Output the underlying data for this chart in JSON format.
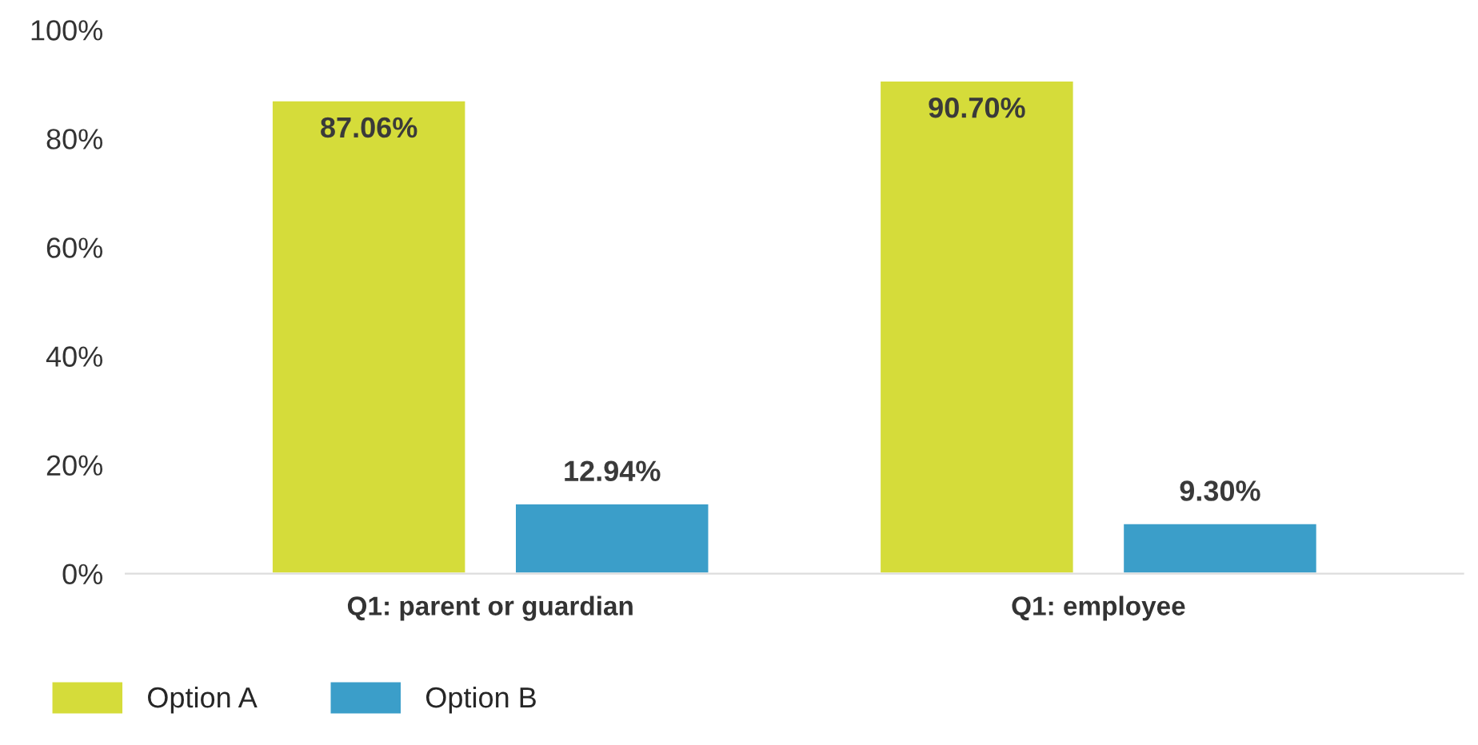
{
  "chart_data": {
    "type": "bar",
    "categories": [
      "Q1: parent or guardian",
      "Q1: employee"
    ],
    "series": [
      {
        "name": "Option A",
        "color": "#d5dc3a",
        "values": [
          87.06,
          90.7
        ],
        "value_labels": [
          "87.06%",
          "90.70%"
        ]
      },
      {
        "name": "Option B",
        "color": "#3b9ec9",
        "values": [
          12.94,
          9.3
        ],
        "value_labels": [
          "12.94%",
          "9.30%"
        ]
      }
    ],
    "ylim": [
      0,
      100
    ],
    "yticks": [
      {
        "value": 0,
        "label": "0%"
      },
      {
        "value": 20,
        "label": "20%"
      },
      {
        "value": 40,
        "label": "40%"
      },
      {
        "value": 60,
        "label": "60%"
      },
      {
        "value": 80,
        "label": "80%"
      },
      {
        "value": 100,
        "label": "100%"
      }
    ],
    "grid": false,
    "legend": "bottom left"
  }
}
